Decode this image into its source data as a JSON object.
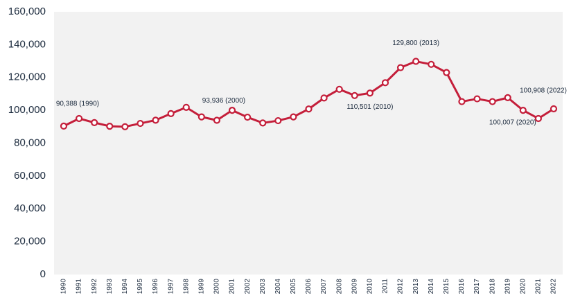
{
  "chart_data": {
    "type": "line",
    "categories": [
      "1990",
      "1991",
      "1992",
      "1993",
      "1994",
      "1995",
      "1996",
      "1997",
      "1998",
      "1999",
      "2000",
      "2001",
      "2002",
      "2003",
      "2004",
      "2005",
      "2006",
      "2007",
      "2008",
      "2009",
      "2010",
      "2011",
      "2012",
      "2013",
      "2014",
      "2015",
      "2016",
      "2017",
      "2018",
      "2019",
      "2020",
      "2021",
      "2022"
    ],
    "series": [
      {
        "color": "#c41e3a",
        "values": [
          90388,
          95000,
          92500,
          90300,
          90000,
          92000,
          94000,
          98000,
          101800,
          96000,
          93936,
          100000,
          95800,
          92300,
          93700,
          96000,
          100800,
          107500,
          112800,
          109000,
          110501,
          116800,
          126000,
          129800,
          128000,
          123000,
          105300,
          107000,
          105300,
          107700,
          100007,
          95000,
          100908
        ]
      }
    ],
    "annotations": [
      {
        "text": "90,388 (1990)",
        "category": "1990"
      },
      {
        "text": "93,936 (2000)",
        "category": "2000"
      },
      {
        "text": "110,501 (2010)",
        "category": "2010"
      },
      {
        "text": "129,800 (2013)",
        "category": "2013"
      },
      {
        "text": "100,007 (2020)",
        "category": "2020"
      },
      {
        "text": "100,908 (2022)",
        "category": "2022"
      }
    ],
    "ylim": [
      0,
      160000
    ],
    "yticks": [
      0,
      {
        "value": 20000,
        "label": "20,000"
      },
      {
        "value": 40000,
        "label": "40,000"
      },
      {
        "value": 60000,
        "label": "60,000"
      },
      {
        "value": 80000,
        "label": "80,000"
      },
      {
        "value": 100000,
        "label": "100,000"
      },
      {
        "value": 120000,
        "label": "120,000"
      },
      {
        "value": 140000,
        "label": "140,000"
      },
      {
        "value": 160000,
        "label": "160,000"
      }
    ],
    "background": "#f2f2f2"
  }
}
